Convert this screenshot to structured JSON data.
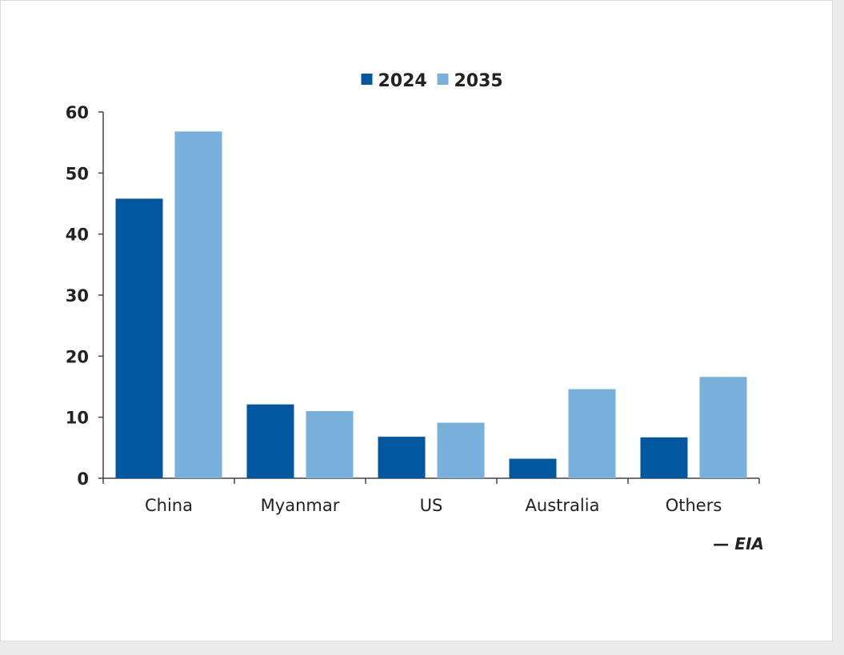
{
  "chart_data": {
    "type": "bar",
    "categories": [
      "China",
      "Myanmar",
      "US",
      "Australia",
      "Others"
    ],
    "series": [
      {
        "name": "2024",
        "values": [
          45.8,
          12.1,
          6.8,
          3.2,
          6.7
        ],
        "color": "#02589f"
      },
      {
        "name": "2035",
        "values": [
          56.8,
          11.0,
          9.1,
          14.6,
          16.6
        ],
        "color": "#78afdb"
      }
    ],
    "ylim": [
      0,
      60
    ],
    "yticks": [
      "0",
      "10",
      "20",
      "30",
      "40",
      "50",
      "60"
    ],
    "legend_position": "top-center",
    "grid": false
  },
  "source": "— EIA",
  "colors": {
    "axis": "#444444",
    "background": "#ffffff",
    "page": "#ececec"
  }
}
